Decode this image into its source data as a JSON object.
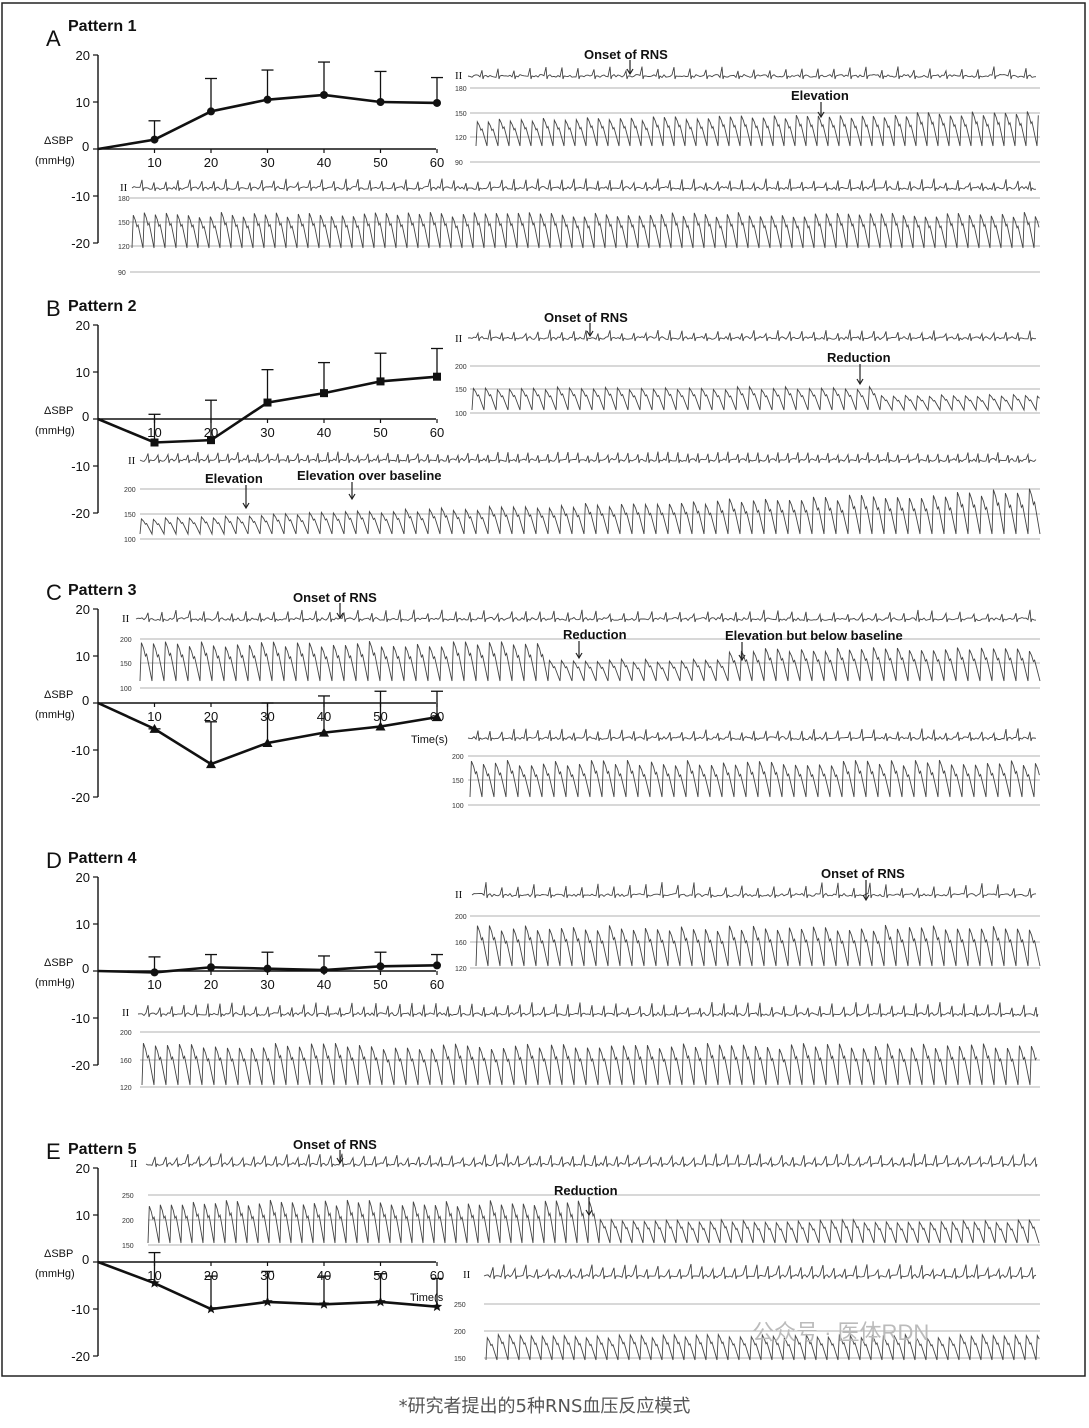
{
  "caption": "*研究者提出的5种RNS血压反应模式",
  "watermark": "公众号 · 医体RDN",
  "common": {
    "ylabel_line1": "ΔSBP",
    "ylabel_line2": "(mmHg)",
    "lead_label": "II",
    "time_label": "Time(s)",
    "time_label_cut": "Time(s"
  },
  "panels": [
    {
      "letter": "A",
      "title": "Pattern 1",
      "chart_data": {
        "type": "line",
        "x": [
          0,
          10,
          20,
          30,
          40,
          50,
          60
        ],
        "y": [
          0,
          2,
          8,
          10.5,
          11.5,
          10,
          9.8
        ],
        "err_upper": [
          0,
          6,
          15,
          16.8,
          18.5,
          16.5,
          15.2
        ],
        "ylim": [
          -20,
          20
        ],
        "yticks": [
          20,
          10,
          0,
          -10,
          -20
        ],
        "xticks": [
          10,
          20,
          30,
          40,
          50,
          60
        ]
      },
      "annotations": [
        "Onset of RNS",
        "Elevation"
      ],
      "trace_scales": [
        [
          "180",
          "150",
          "120",
          "90"
        ],
        [
          "180",
          "150",
          "120",
          "90"
        ]
      ]
    },
    {
      "letter": "B",
      "title": "Pattern 2",
      "chart_data": {
        "type": "line",
        "x": [
          0,
          10,
          20,
          30,
          40,
          50,
          60
        ],
        "y": [
          0,
          -5,
          -4.5,
          3.5,
          5.5,
          8,
          9
        ],
        "err_upper": [
          0,
          1,
          4,
          10.5,
          12,
          14,
          15
        ],
        "ylim": [
          -20,
          20
        ],
        "yticks": [
          20,
          10,
          0,
          -10,
          -20
        ],
        "xticks": [
          10,
          20,
          30,
          40,
          50,
          60
        ]
      },
      "annotations": [
        "Onset of RNS",
        "Reduction",
        "Elevation",
        "Elevation over baseline"
      ],
      "trace_scales": [
        [
          "200",
          "150",
          "100"
        ],
        [
          "200",
          "150",
          "100"
        ]
      ]
    },
    {
      "letter": "C",
      "title": "Pattern 3",
      "chart_data": {
        "type": "line",
        "x": [
          0,
          10,
          20,
          30,
          40,
          50,
          60
        ],
        "y": [
          0,
          -5.5,
          -13,
          -8.5,
          -6.3,
          -5,
          -3
        ],
        "err_upper": [
          0,
          -5.5,
          -4,
          0,
          1.5,
          2.5,
          2.5
        ],
        "ylim": [
          -20,
          20
        ],
        "yticks": [
          20,
          10,
          0,
          -10,
          -20
        ],
        "xticks": [
          10,
          20,
          30,
          40,
          50,
          60
        ]
      },
      "annotations": [
        "Onset of RNS",
        "Reduction",
        "Elevation but below baseline"
      ],
      "trace_scales": [
        [
          "200",
          "150",
          "100"
        ],
        [
          "200",
          "150",
          "100"
        ]
      ]
    },
    {
      "letter": "D",
      "title": "Pattern 4",
      "chart_data": {
        "type": "line",
        "x": [
          0,
          10,
          20,
          30,
          40,
          50,
          60
        ],
        "y": [
          0,
          -0.3,
          0.8,
          0.5,
          0.2,
          1,
          1.2
        ],
        "err_upper": [
          0,
          3,
          3.5,
          4,
          3.2,
          4,
          3.5
        ],
        "ylim": [
          -20,
          20
        ],
        "yticks": [
          20,
          10,
          0,
          -10,
          -20
        ],
        "xticks": [
          10,
          20,
          30,
          40,
          50,
          60
        ]
      },
      "annotations": [
        "Onset of RNS"
      ],
      "trace_scales": [
        [
          "200",
          "160",
          "120"
        ],
        [
          "200",
          "160",
          "120"
        ]
      ]
    },
    {
      "letter": "E",
      "title": "Pattern 5",
      "chart_data": {
        "type": "line",
        "x": [
          0,
          10,
          20,
          30,
          40,
          50,
          60
        ],
        "y": [
          0,
          -4.5,
          -10,
          -8.5,
          -9,
          -8.5,
          -9.5
        ],
        "err_upper": [
          0,
          2,
          -3,
          -2,
          -3,
          -2.5,
          -3.5
        ],
        "ylim": [
          -20,
          20
        ],
        "yticks": [
          20,
          10,
          0,
          -10,
          -20
        ],
        "xticks": [
          10,
          20,
          30,
          40,
          50,
          60
        ]
      },
      "annotations": [
        "Onset of RNS",
        "Reduction"
      ],
      "trace_scales": [
        [
          "250",
          "200",
          "150"
        ],
        [
          "250",
          "200",
          "150"
        ]
      ]
    }
  ]
}
